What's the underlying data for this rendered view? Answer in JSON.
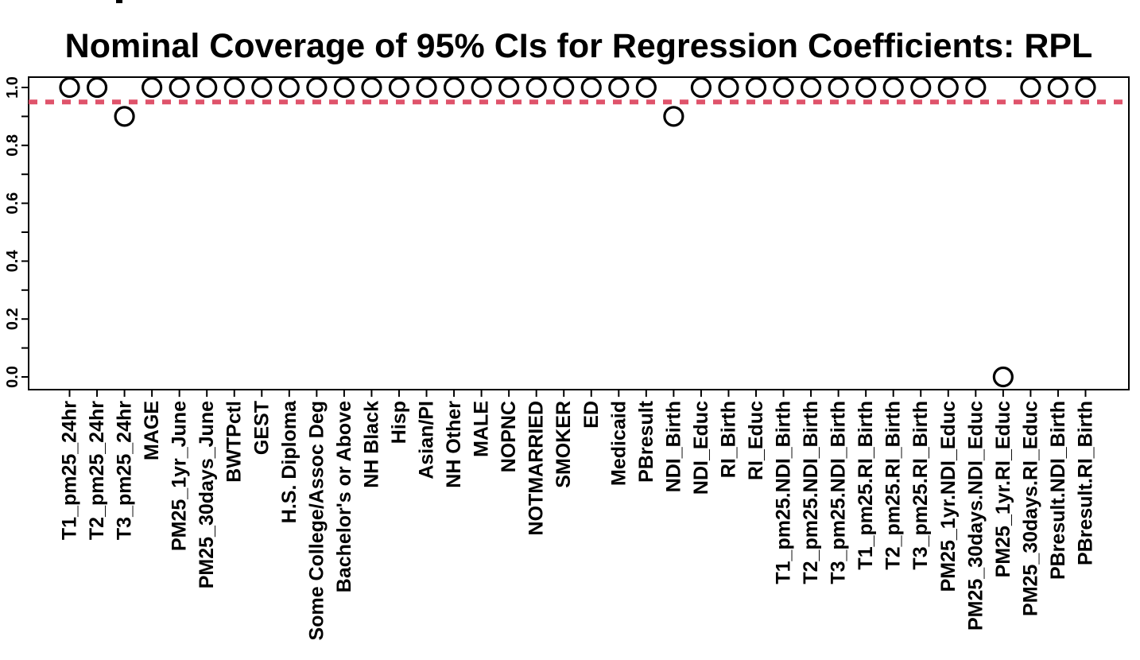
{
  "chart_data": {
    "type": "scatter",
    "title": "Nominal Coverage of 95% CIs for Regression Coefficients: RPL",
    "xlabel": "",
    "ylabel": "",
    "ylim": [
      0.0,
      1.0
    ],
    "grid": false,
    "legend": false,
    "categories": [
      "T1_pm25_24hr",
      "T2_pm25_24hr",
      "T3_pm25_24hr",
      "MAGE",
      "PM25_1yr_June",
      "PM25_30days_June",
      "BWTPctl",
      "GEST",
      "H.S. Diploma",
      "Some College/Assoc Deg",
      "Bachelor's or Above",
      "NH Black",
      "Hisp",
      "Asian/PI",
      "NH Other",
      "MALE",
      "NOPNC",
      "NOTMARRIED",
      "SMOKER",
      "ED",
      "Medicaid",
      "PBresult",
      "NDI_Birth",
      "NDI_Educ",
      "RI_Birth",
      "RI_Educ",
      "T1_pm25.NDI_Birth",
      "T2_pm25.NDI_Birth",
      "T3_pm25.NDI_Birth",
      "T1_pm25.RI_Birth",
      "T2_pm25.RI_Birth",
      "T3_pm25.RI_Birth",
      "PM25_1yr.NDI_Educ",
      "PM25_30days.NDI_Educ",
      "PM25_1yr.RI_Educ",
      "PM25_30days.RI_Educ",
      "PBresult.NDI_Birth",
      "PBresult.RI_Birth"
    ],
    "values": [
      1.0,
      1.0,
      0.9,
      1.0,
      1.0,
      1.0,
      1.0,
      1.0,
      1.0,
      1.0,
      1.0,
      1.0,
      1.0,
      1.0,
      1.0,
      1.0,
      1.0,
      1.0,
      1.0,
      1.0,
      1.0,
      1.0,
      0.9,
      1.0,
      1.0,
      1.0,
      1.0,
      1.0,
      1.0,
      1.0,
      1.0,
      1.0,
      1.0,
      1.0,
      0.0,
      1.0,
      1.0,
      1.0
    ],
    "y_major_ticks": [
      0.0,
      0.2,
      0.4,
      0.6,
      0.8,
      1.0
    ],
    "y_major_tick_labels": [
      "0.0",
      "0.2",
      "0.4",
      "0.6",
      "0.8",
      "1.0"
    ],
    "y_minor_ticks": [
      0.1,
      0.3,
      0.5,
      0.7,
      0.9
    ],
    "reference_line": {
      "value": 0.95,
      "style": "dashed",
      "color": "#DF536B"
    },
    "point_style": {
      "shape": "open-circle",
      "color": "#000000"
    }
  }
}
